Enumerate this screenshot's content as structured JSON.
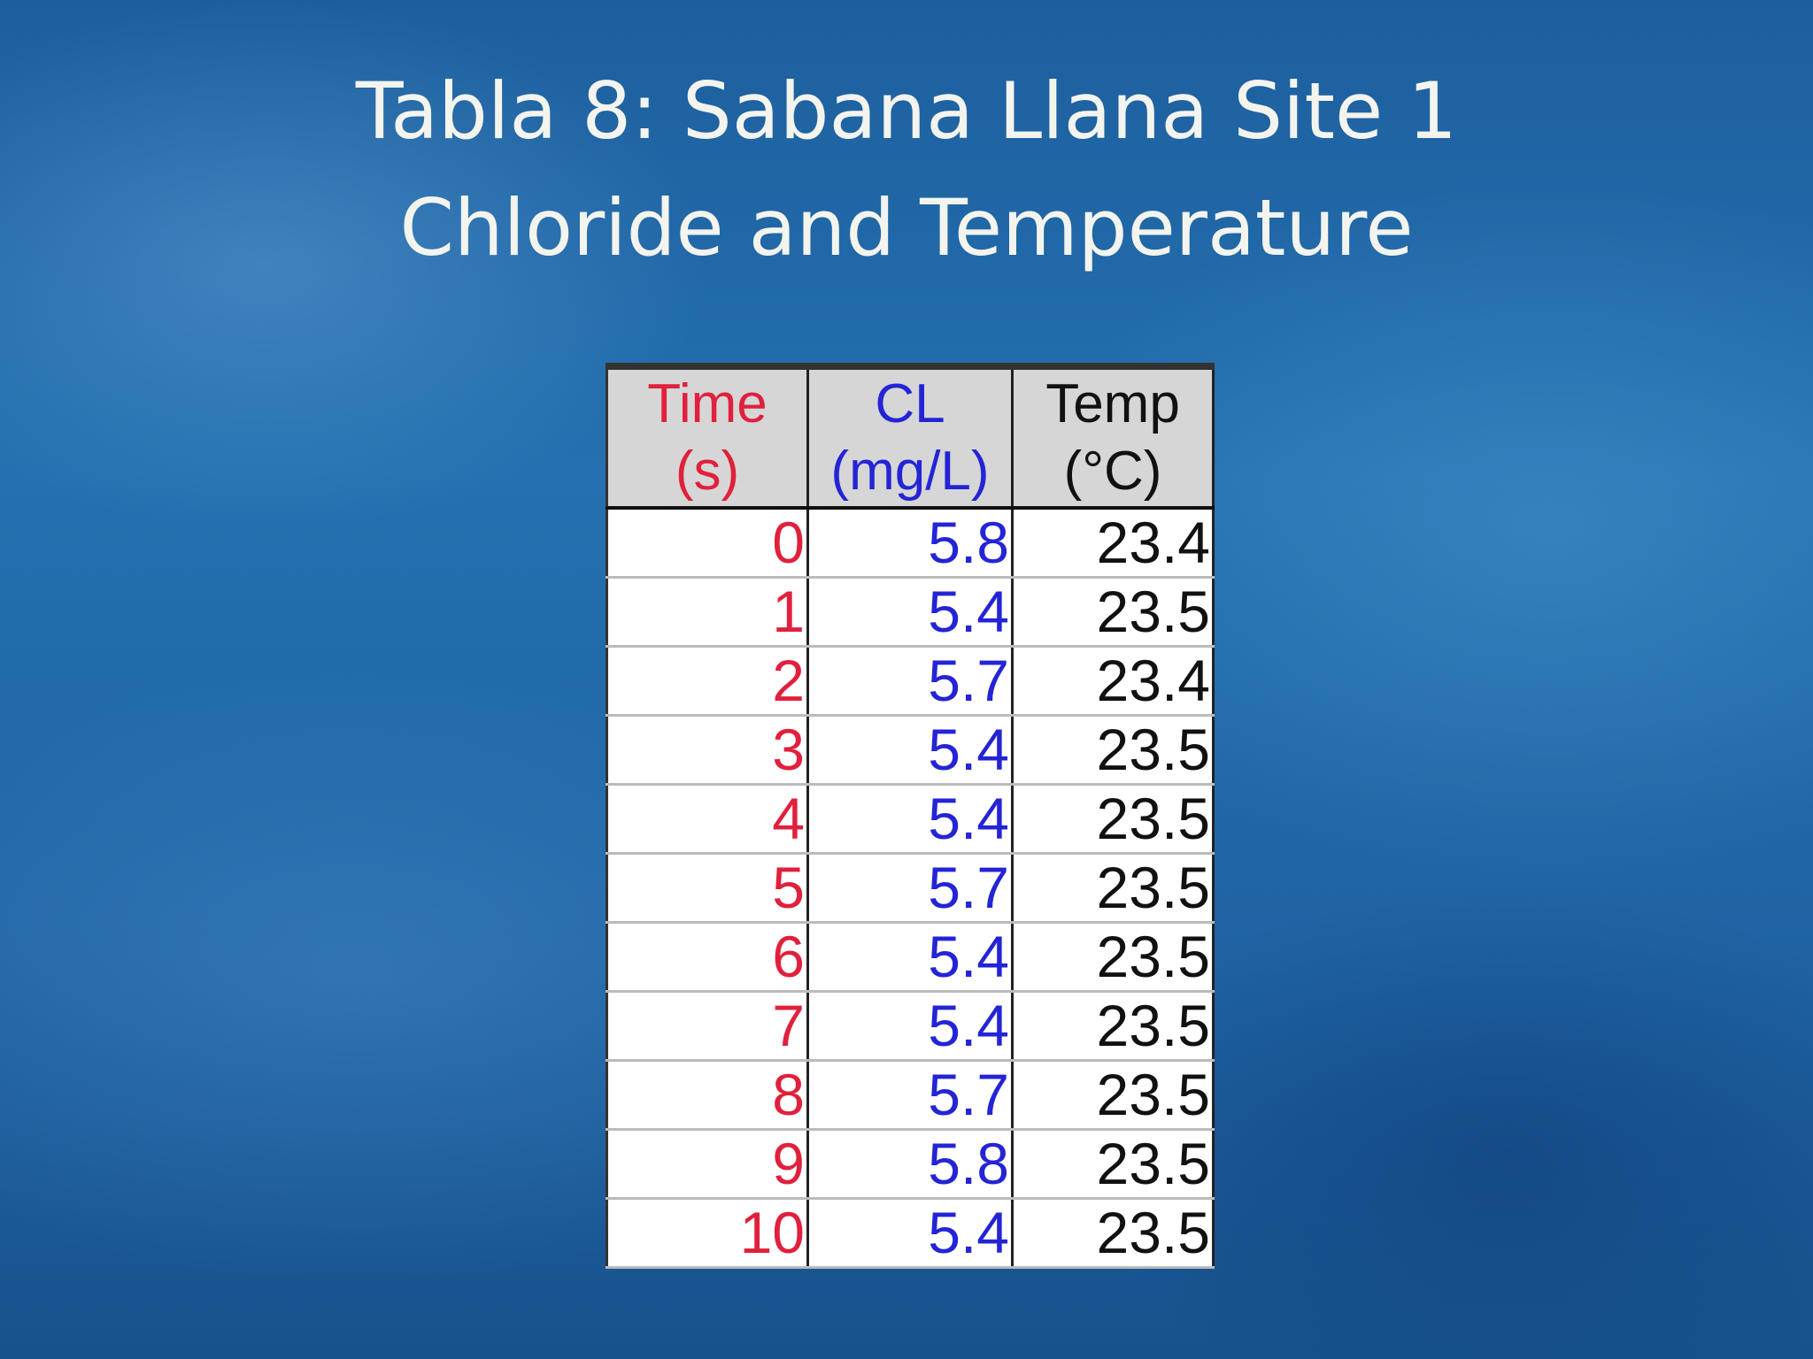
{
  "title": {
    "lines": [
      "Tabla 8: Sabana Llana Site 1",
      "Chloride and Temperature"
    ]
  },
  "table": {
    "header": [
      [
        "Time",
        "(s)"
      ],
      [
        "CL",
        "(mg/L)"
      ],
      [
        "Temp",
        "(°C)"
      ]
    ],
    "rows": [
      [
        0,
        5.8,
        23.4
      ],
      [
        1,
        5.4,
        23.5
      ],
      [
        2,
        5.7,
        23.4
      ],
      [
        3,
        5.4,
        23.5
      ],
      [
        4,
        5.4,
        23.5
      ],
      [
        5,
        5.7,
        23.5
      ],
      [
        6,
        5.4,
        23.5
      ],
      [
        7,
        5.4,
        23.5
      ],
      [
        8,
        5.7,
        23.5
      ],
      [
        9,
        5.8,
        23.5
      ],
      [
        10,
        5.4,
        23.5
      ]
    ]
  }
}
